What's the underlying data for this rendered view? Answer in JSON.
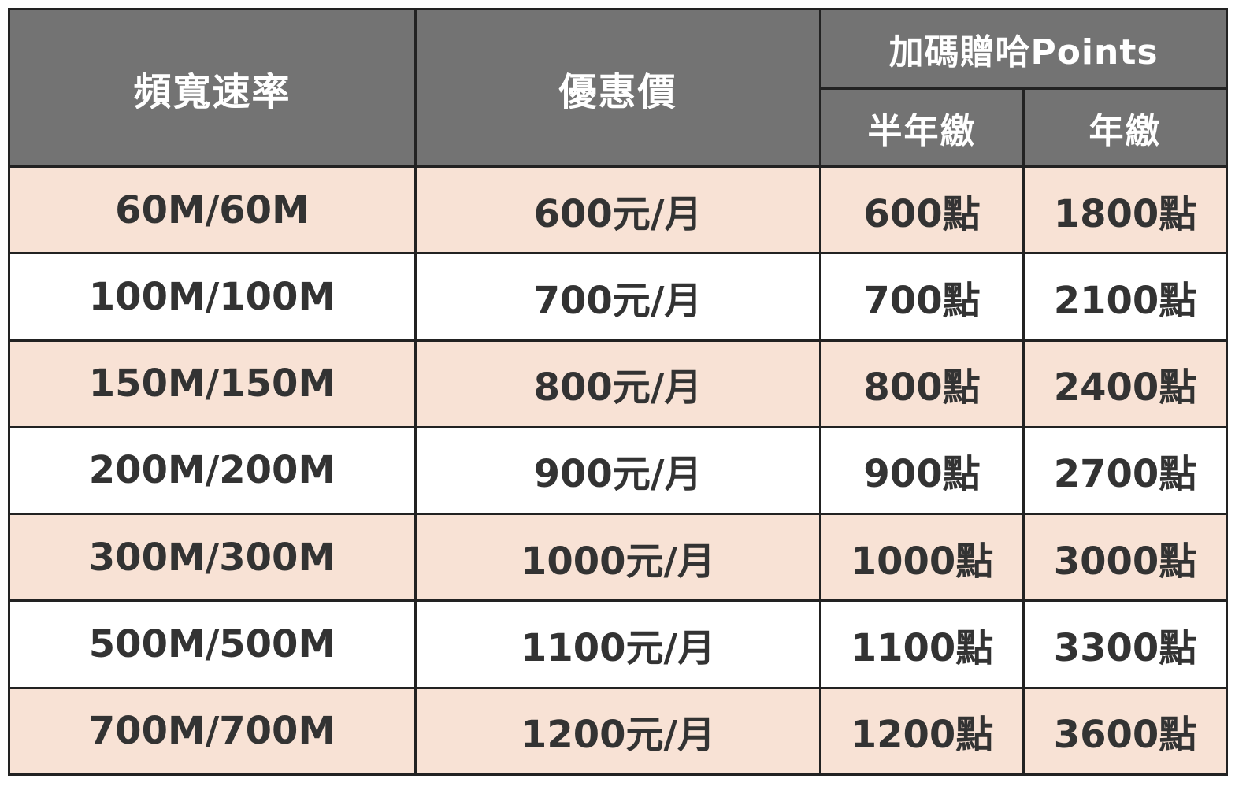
{
  "table": {
    "headers": {
      "bandwidth": "頻寬速率",
      "price": "優惠價",
      "bonus_group": "加碼贈哈Points",
      "half_year": "半年繳",
      "full_year": "年繳"
    },
    "colors": {
      "header_bg": "#737373",
      "highlight_row_bg": "#f8e2d5",
      "plain_row_bg": "#ffffff",
      "border": "#222222"
    },
    "rows": [
      {
        "bandwidth": "60M/60M",
        "price": "600元/月",
        "half_year": "600點",
        "full_year": "1800點"
      },
      {
        "bandwidth": "100M/100M",
        "price": "700元/月",
        "half_year": "700點",
        "full_year": "2100點"
      },
      {
        "bandwidth": "150M/150M",
        "price": "800元/月",
        "half_year": "800點",
        "full_year": "2400點"
      },
      {
        "bandwidth": "200M/200M",
        "price": "900元/月",
        "half_year": "900點",
        "full_year": "2700點"
      },
      {
        "bandwidth": "300M/300M",
        "price": "1000元/月",
        "half_year": "1000點",
        "full_year": "3000點"
      },
      {
        "bandwidth": "500M/500M",
        "price": "1100元/月",
        "half_year": "1100點",
        "full_year": "3300點"
      },
      {
        "bandwidth": "700M/700M",
        "price": "1200元/月",
        "half_year": "1200點",
        "full_year": "3600點"
      }
    ]
  }
}
